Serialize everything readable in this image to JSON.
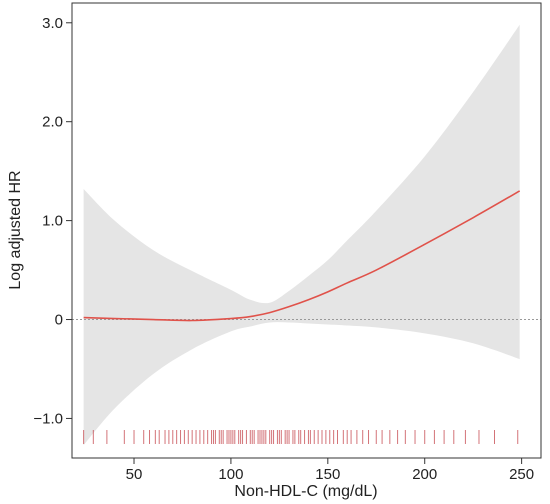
{
  "chart_data": {
    "type": "line",
    "xlabel": "Non-HDL-C (mg/dL)",
    "ylabel": "Log adjusted HR",
    "xlim": [
      18,
      260
    ],
    "ylim": [
      -1.4,
      3.2
    ],
    "xticks": [
      {
        "value": 50,
        "label": "50"
      },
      {
        "value": 100,
        "label": "100"
      },
      {
        "value": 150,
        "label": "150"
      },
      {
        "value": 200,
        "label": "200"
      },
      {
        "value": 250,
        "label": "250"
      }
    ],
    "yticks": [
      {
        "value": -1.0,
        "label": "−1.0"
      },
      {
        "value": 0,
        "label": "0"
      },
      {
        "value": 1.0,
        "label": "1.0"
      },
      {
        "value": 2.0,
        "label": "2.0"
      },
      {
        "value": 3.0,
        "label": "3.0"
      }
    ],
    "reference_line_y": 0,
    "grid": false,
    "colors": {
      "curve": "#e0524a",
      "band": "#e5e5e5",
      "rug": "#c0383f",
      "reference": "#999999"
    },
    "series": [
      {
        "x": [
          24,
          40,
          60,
          80,
          100,
          110,
          120,
          130,
          140,
          150,
          160,
          175,
          200,
          225,
          249
        ],
        "y": [
          0.02,
          0.01,
          0.0,
          -0.01,
          0.01,
          0.03,
          0.07,
          0.13,
          0.2,
          0.28,
          0.37,
          0.5,
          0.76,
          1.03,
          1.3
        ],
        "lower": [
          -1.27,
          -0.9,
          -0.55,
          -0.3,
          -0.12,
          -0.07,
          -0.03,
          -0.03,
          -0.04,
          -0.05,
          -0.06,
          -0.08,
          -0.14,
          -0.24,
          -0.4
        ],
        "upper": [
          1.32,
          1.0,
          0.7,
          0.49,
          0.3,
          0.2,
          0.17,
          0.29,
          0.44,
          0.6,
          0.8,
          1.1,
          1.65,
          2.3,
          2.98
        ]
      }
    ],
    "rug": [
      24,
      29,
      36,
      45,
      50,
      55,
      58,
      61,
      63,
      66,
      68,
      70,
      72,
      74,
      76,
      78,
      80,
      82,
      84,
      86,
      88,
      90,
      91,
      92,
      94,
      95,
      96,
      98,
      99,
      100,
      101,
      102,
      104,
      105,
      106,
      108,
      110,
      111,
      112,
      114,
      115,
      116,
      117,
      118,
      120,
      121,
      122,
      124,
      125,
      126,
      128,
      129,
      130,
      132,
      133,
      135,
      136,
      138,
      140,
      141,
      143,
      145,
      147,
      149,
      151,
      153,
      155,
      158,
      160,
      162,
      165,
      168,
      171,
      175,
      178,
      182,
      186,
      190,
      195,
      200,
      205,
      210,
      215,
      221,
      228,
      236,
      248
    ]
  }
}
